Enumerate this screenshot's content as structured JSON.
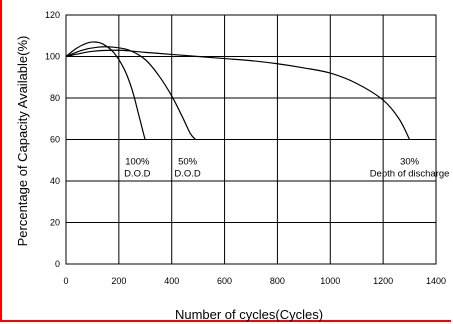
{
  "chart_data": {
    "type": "line",
    "xlabel": "Number of cycles(Cycles)",
    "ylabel": "Percentage of Capacity Available(%)",
    "xlim": [
      0,
      1400
    ],
    "ylim": [
      0,
      120
    ],
    "x_ticks": [
      "0",
      "200",
      "400",
      "600",
      "800",
      "1000",
      "1200",
      "1400"
    ],
    "y_ticks": [
      "0",
      "20",
      "40",
      "60",
      "80",
      "100",
      "120"
    ],
    "grid": true,
    "series": [
      {
        "name": "100% D.O.D",
        "label_lines": [
          "100%",
          "D.O.D"
        ],
        "label_at": [
          270,
          48
        ],
        "points": [
          [
            0,
            100
          ],
          [
            40,
            104
          ],
          [
            80,
            106.5
          ],
          [
            110,
            107
          ],
          [
            140,
            106
          ],
          [
            180,
            102
          ],
          [
            220,
            94
          ],
          [
            250,
            84
          ],
          [
            275,
            72
          ],
          [
            295,
            62
          ],
          [
            300,
            60
          ]
        ]
      },
      {
        "name": "50% D.O.D",
        "label_lines": [
          "50%",
          "D.O.D"
        ],
        "label_at": [
          460,
          48
        ],
        "points": [
          [
            0,
            100
          ],
          [
            60,
            103
          ],
          [
            120,
            104.5
          ],
          [
            180,
            104.5
          ],
          [
            240,
            103
          ],
          [
            300,
            98.5
          ],
          [
            350,
            91
          ],
          [
            400,
            81
          ],
          [
            440,
            71
          ],
          [
            470,
            63
          ],
          [
            490,
            60
          ]
        ]
      },
      {
        "name": "30% Depth of discharge",
        "label_lines": [
          "30%",
          "Depth of discharge"
        ],
        "label_at": [
          1300,
          48
        ],
        "points": [
          [
            0,
            100
          ],
          [
            100,
            102.5
          ],
          [
            200,
            103
          ],
          [
            300,
            102
          ],
          [
            400,
            101
          ],
          [
            500,
            100
          ],
          [
            600,
            99
          ],
          [
            700,
            98
          ],
          [
            800,
            96.5
          ],
          [
            900,
            94.5
          ],
          [
            1000,
            92
          ],
          [
            1100,
            87
          ],
          [
            1200,
            79
          ],
          [
            1260,
            70
          ],
          [
            1300,
            60
          ]
        ]
      }
    ]
  }
}
